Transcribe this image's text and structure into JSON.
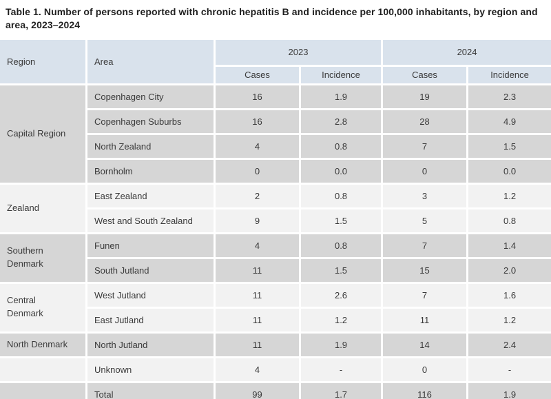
{
  "title": "Table 1. Number of persons reported with chronic hepatitis B and incidence per 100,000 inhabitants, by region and area, 2023–2024",
  "colors": {
    "header_bg": "#d9e2ec",
    "row_dark": "#d6d6d6",
    "row_light": "#f2f2f2",
    "text": "#3a3a3a",
    "title_text": "#1f1f1f"
  },
  "table": {
    "header": {
      "region": "Region",
      "area": "Area",
      "year_groups": [
        {
          "year": "2023",
          "subs": [
            "Cases",
            "Incidence"
          ]
        },
        {
          "year": "2024",
          "subs": [
            "Cases",
            "Incidence"
          ]
        }
      ]
    },
    "groups": [
      {
        "region": "Capital Region",
        "shade": "dark",
        "rows": [
          {
            "area": "Copenhagen City",
            "values": [
              "16",
              "1.9",
              "19",
              "2.3"
            ]
          },
          {
            "area": "Copenhagen Suburbs",
            "values": [
              "16",
              "2.8",
              "28",
              "4.9"
            ]
          },
          {
            "area": "North Zealand",
            "values": [
              "4",
              "0.8",
              "7",
              "1.5"
            ]
          },
          {
            "area": "Bornholm",
            "values": [
              "0",
              "0.0",
              "0",
              "0.0"
            ]
          }
        ]
      },
      {
        "region": "Zealand",
        "shade": "light",
        "rows": [
          {
            "area": "East Zealand",
            "values": [
              "2",
              "0.8",
              "3",
              "1.2"
            ]
          },
          {
            "area": "West and South Zealand",
            "values": [
              "9",
              "1.5",
              "5",
              "0.8"
            ]
          }
        ]
      },
      {
        "region": "Southern Denmark",
        "shade": "dark",
        "rows": [
          {
            "area": "Funen",
            "values": [
              "4",
              "0.8",
              "7",
              "1.4"
            ]
          },
          {
            "area": "South Jutland",
            "values": [
              "11",
              "1.5",
              "15",
              "2.0"
            ]
          }
        ]
      },
      {
        "region": "Central Denmark",
        "shade": "light",
        "rows": [
          {
            "area": "West Jutland",
            "values": [
              "11",
              "2.6",
              "7",
              "1.6"
            ]
          },
          {
            "area": "East Jutland",
            "values": [
              "11",
              "1.2",
              "11",
              "1.2"
            ]
          }
        ]
      },
      {
        "region": "North Denmark",
        "shade": "dark",
        "rows": [
          {
            "area": "North Jutland",
            "values": [
              "11",
              "1.9",
              "14",
              "2.4"
            ]
          }
        ]
      },
      {
        "region": "",
        "shade": "light",
        "rows": [
          {
            "area": "Unknown",
            "values": [
              "4",
              "-",
              "0",
              "-"
            ]
          }
        ]
      },
      {
        "region": "",
        "shade": "dark",
        "rows": [
          {
            "area": "Total",
            "values": [
              "99",
              "1.7",
              "116",
              "1.9"
            ]
          }
        ]
      }
    ]
  }
}
